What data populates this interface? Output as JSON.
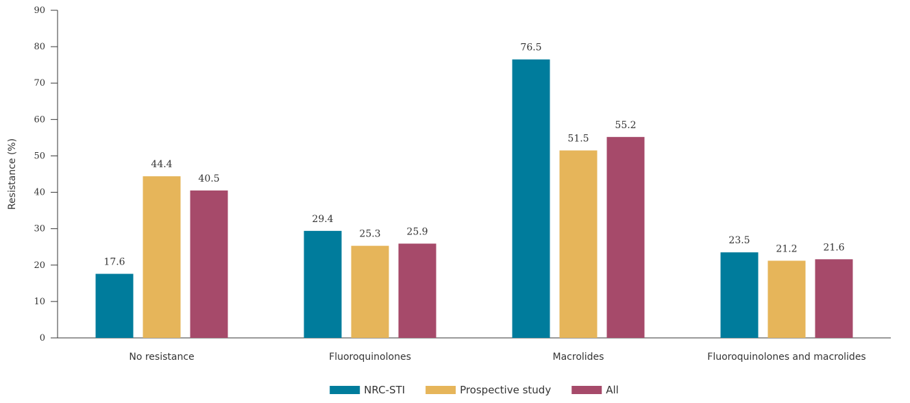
{
  "chart_data": {
    "type": "bar",
    "title": "",
    "xlabel": "",
    "ylabel": "Resistance (%)",
    "ylim": [
      0,
      90
    ],
    "yticks": [
      0,
      10,
      20,
      30,
      40,
      50,
      60,
      70,
      80,
      90
    ],
    "grid": false,
    "legend_position": "bottom-center",
    "categories": [
      "No resistance",
      "Fluoroquinolones",
      "Macrolides",
      "Fluoroquinolones and macrolides"
    ],
    "series": [
      {
        "name": "NRC-STI",
        "color": "#007c9c",
        "values": [
          17.6,
          29.4,
          76.5,
          23.5
        ]
      },
      {
        "name": "Prospective study",
        "color": "#e6b55a",
        "values": [
          44.4,
          25.3,
          51.5,
          21.2
        ]
      },
      {
        "name": "All",
        "color": "#a64a6a",
        "values": [
          40.5,
          25.9,
          55.2,
          21.6
        ]
      }
    ]
  }
}
